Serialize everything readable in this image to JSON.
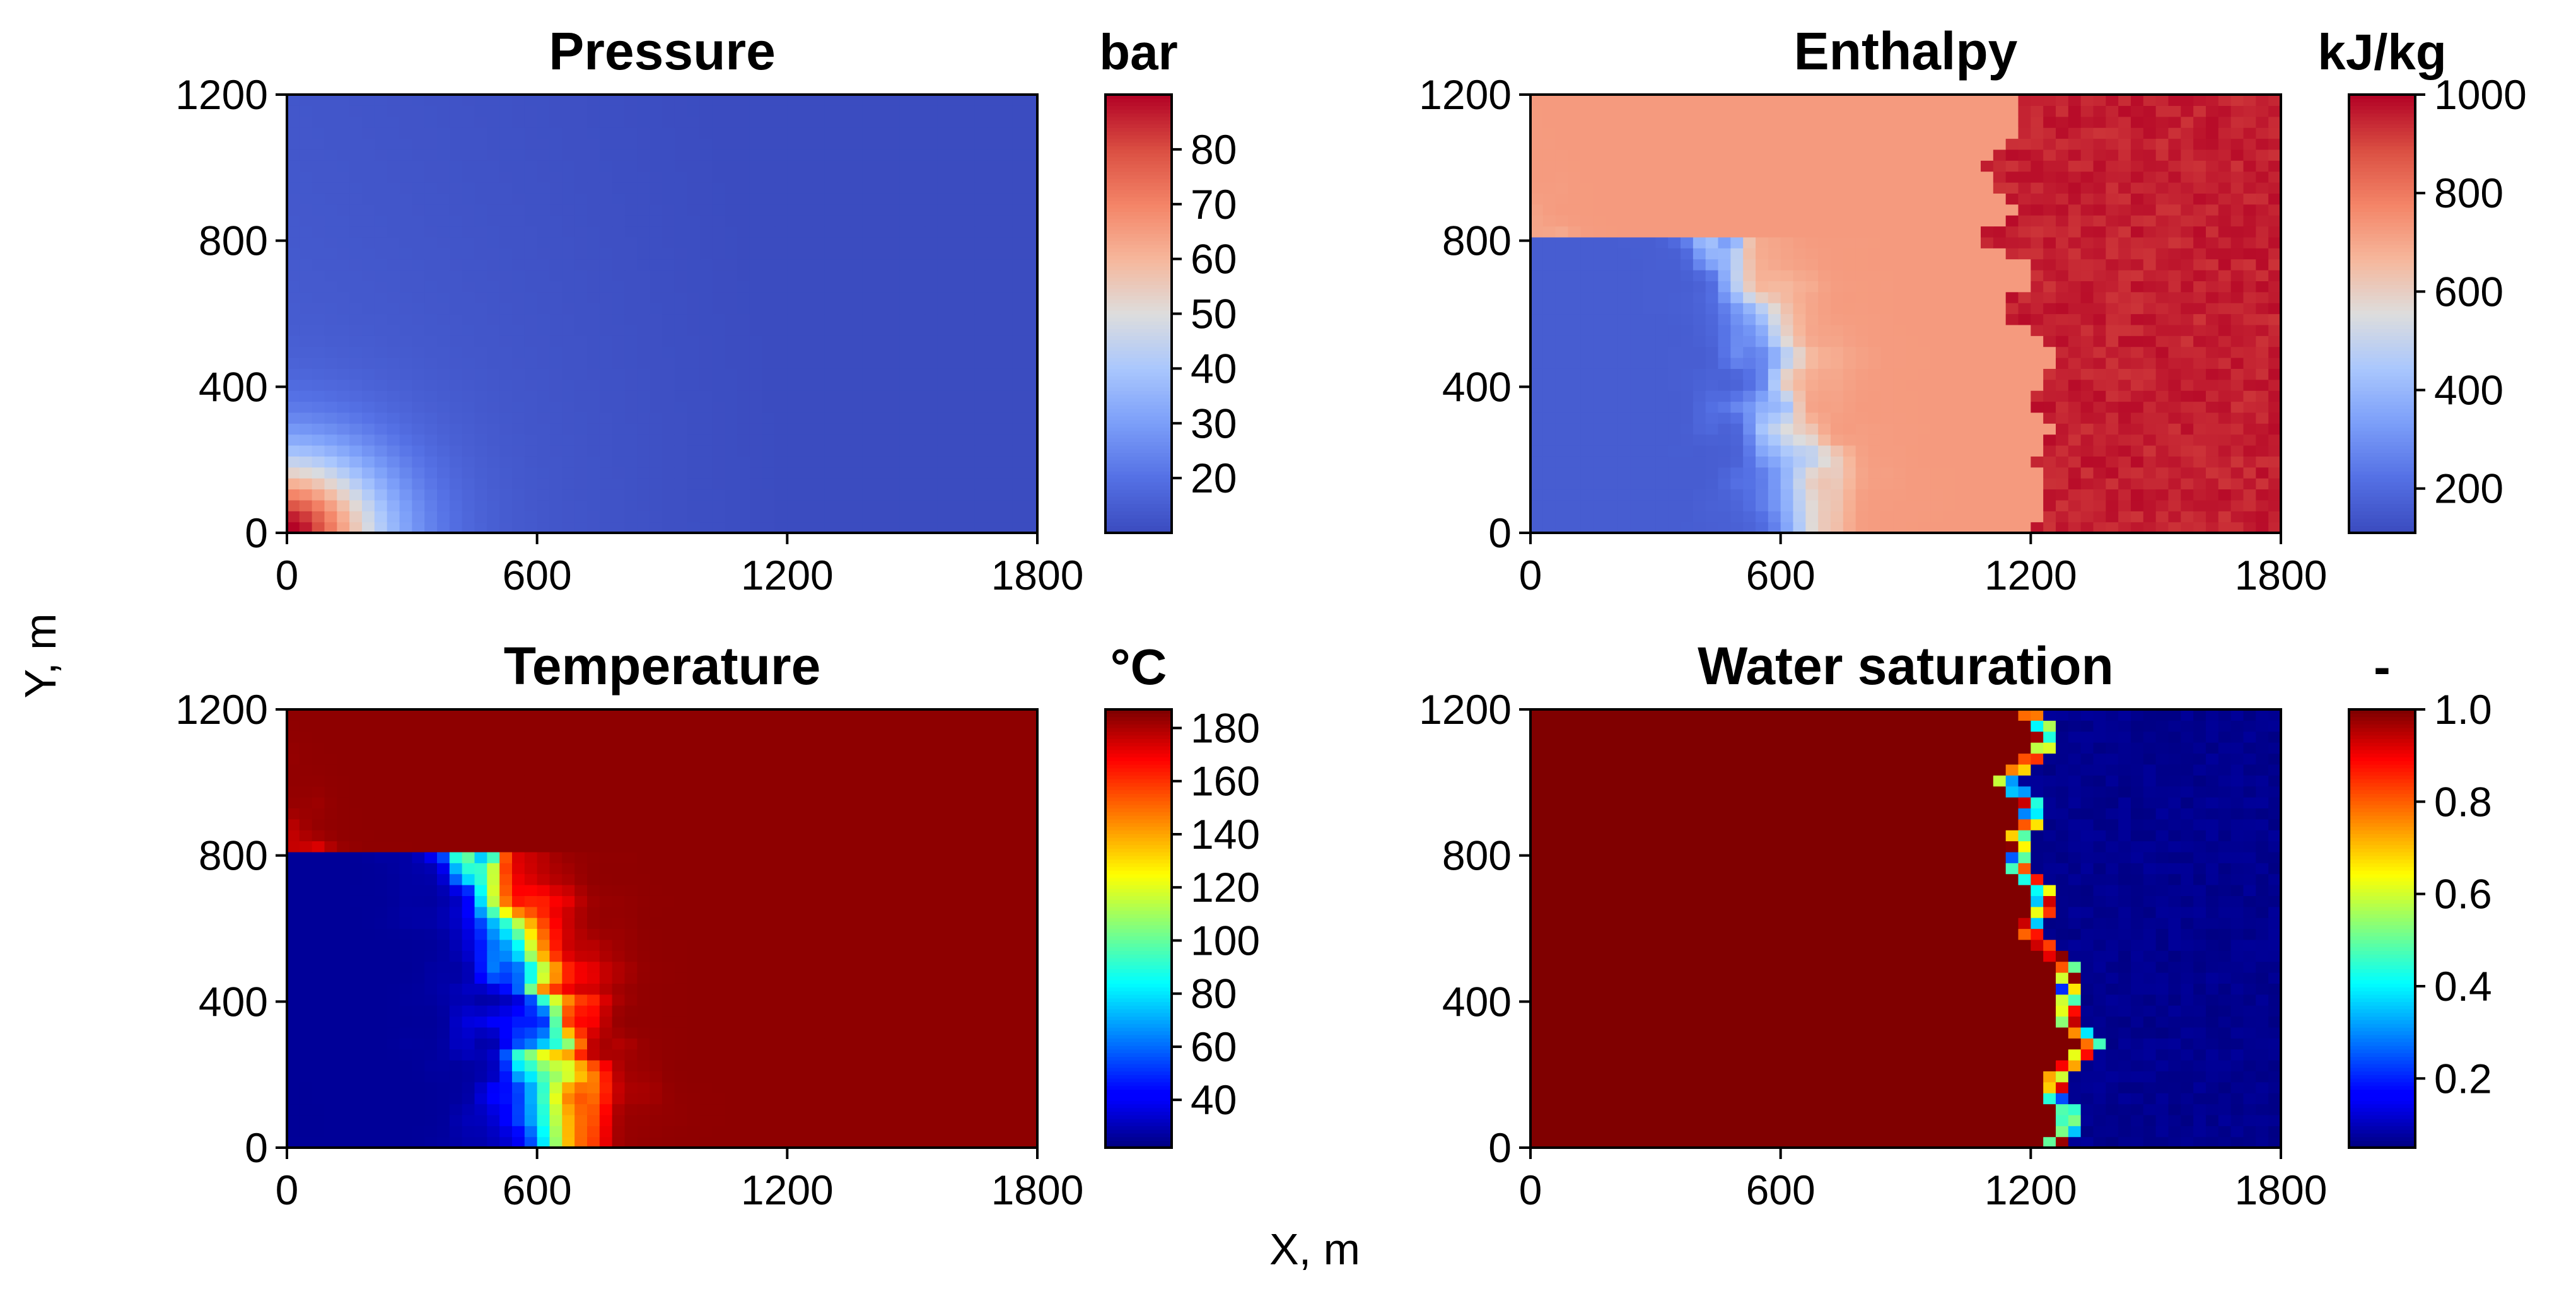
{
  "figure": {
    "shared_xlabel": "X, m",
    "shared_ylabel": "Y, m"
  },
  "chart_data": [
    {
      "type": "heatmap",
      "title": "Pressure",
      "colorbar_label": "bar",
      "colormap": "coolwarm",
      "x_ticks": [
        "0",
        "600",
        "1200",
        "1800"
      ],
      "y_ticks": [
        "0",
        "400",
        "800",
        "1200"
      ],
      "xlim": [
        0,
        1800
      ],
      "ylim": [
        0,
        1200
      ],
      "vmin": 10,
      "vmax": 90,
      "colorbar_ticks": [
        20,
        30,
        40,
        50,
        60,
        70,
        80
      ],
      "field": "pressure"
    },
    {
      "type": "heatmap",
      "title": "Enthalpy",
      "colorbar_label": "kJ/kg",
      "colormap": "coolwarm",
      "x_ticks": [
        "0",
        "600",
        "1200",
        "1800"
      ],
      "y_ticks": [
        "0",
        "400",
        "800",
        "1200"
      ],
      "xlim": [
        0,
        1800
      ],
      "ylim": [
        0,
        1200
      ],
      "vmin": 110,
      "vmax": 1000,
      "colorbar_ticks": [
        200,
        400,
        600,
        800,
        1000
      ],
      "field": "enthalpy"
    },
    {
      "type": "heatmap",
      "title": "Temperature",
      "colorbar_label": "°C",
      "colormap": "jet",
      "x_ticks": [
        "0",
        "600",
        "1200",
        "1800"
      ],
      "y_ticks": [
        "0",
        "400",
        "800",
        "1200"
      ],
      "xlim": [
        0,
        1800
      ],
      "ylim": [
        0,
        1200
      ],
      "vmin": 22,
      "vmax": 187,
      "colorbar_ticks": [
        40,
        60,
        80,
        100,
        120,
        140,
        160,
        180
      ],
      "field": "temperature"
    },
    {
      "type": "heatmap",
      "title": "Water saturation",
      "colorbar_label": "-",
      "colormap": "jet",
      "x_ticks": [
        "0",
        "600",
        "1200",
        "1800"
      ],
      "y_ticks": [
        "0",
        "400",
        "800",
        "1200"
      ],
      "xlim": [
        0,
        1800
      ],
      "ylim": [
        0,
        1200
      ],
      "vmin": 0.05,
      "vmax": 1.0,
      "colorbar_ticks": [
        0.2,
        0.4,
        0.6,
        0.8,
        1.0
      ],
      "colorbar_tick_labels": [
        "0.2",
        "0.4",
        "0.6",
        "0.8",
        "1.0"
      ],
      "field": "saturation"
    }
  ]
}
